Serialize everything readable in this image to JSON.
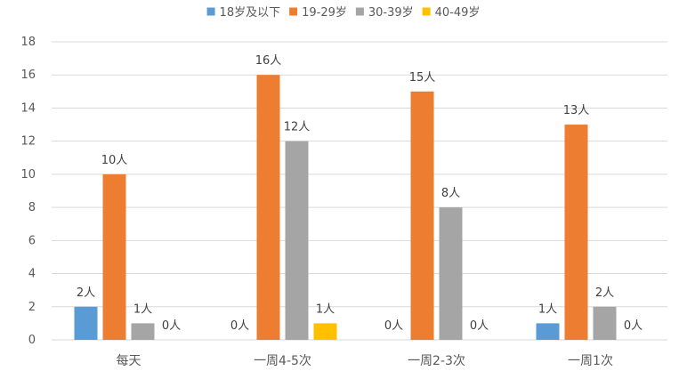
{
  "chart_data": {
    "type": "bar",
    "title": "",
    "xlabel": "",
    "ylabel": "",
    "categories": [
      "每天",
      "一周4-5次",
      "一周2-3次",
      "一周1次"
    ],
    "series": [
      {
        "name": "18岁及以下",
        "color": "#5B9BD5",
        "values": [
          2,
          0,
          0,
          1
        ],
        "labels": [
          "2人",
          "0人",
          "0人",
          "1人"
        ]
      },
      {
        "name": "19-29岁",
        "color": "#ED7D31",
        "values": [
          10,
          16,
          15,
          13
        ],
        "labels": [
          "10人",
          "16人",
          "15人",
          "13人"
        ]
      },
      {
        "name": "30-39岁",
        "color": "#A5A5A5",
        "values": [
          1,
          12,
          8,
          2
        ],
        "labels": [
          "1人",
          "12人",
          "8人",
          "2人"
        ]
      },
      {
        "name": "40-49岁",
        "color": "#FFC000",
        "values": [
          0,
          1,
          0,
          0
        ],
        "labels": [
          "0人",
          "1人",
          "0人",
          "0人"
        ]
      }
    ],
    "ylim": [
      0,
      18
    ],
    "yticks": [
      0,
      2,
      4,
      6,
      8,
      10,
      12,
      14,
      16,
      18
    ],
    "grid": true,
    "legend_position": "top"
  }
}
